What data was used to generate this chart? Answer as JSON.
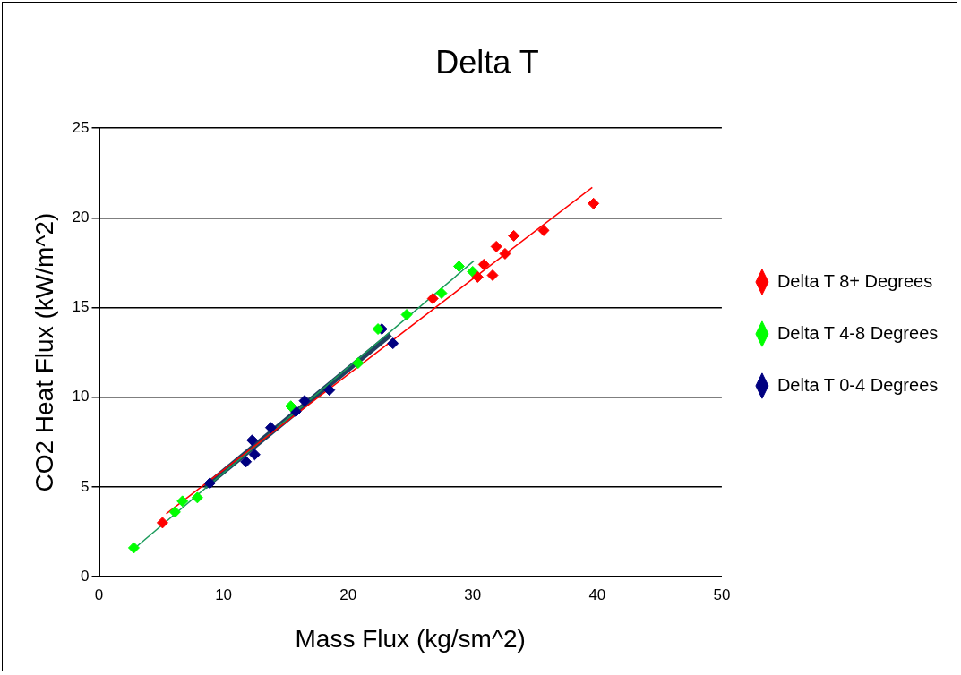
{
  "chart_data": {
    "type": "scatter",
    "title": "Delta T",
    "xlabel": "Mass Flux (kg/sm^2)",
    "ylabel": "CO2 Heat Flux (kW/m^2)",
    "xlim": [
      0,
      50
    ],
    "xticks": [
      0,
      10,
      20,
      30,
      40,
      50
    ],
    "ylim": [
      0,
      25
    ],
    "yticks": [
      0,
      5,
      10,
      15,
      20,
      25
    ],
    "grid": "y",
    "legend": "right",
    "marker": "diamond",
    "series": [
      {
        "name": "Delta T 8+ Degrees",
        "color": "#ff0000",
        "x": [
          5.1,
          26.8,
          30.4,
          30.9,
          31.6,
          31.9,
          32.6,
          33.3,
          35.7,
          39.7
        ],
        "values": [
          3.0,
          15.5,
          16.7,
          17.4,
          16.8,
          18.4,
          18.0,
          19.0,
          19.3,
          20.8
        ]
      },
      {
        "name": "Delta T 4-8 Degrees",
        "color": "#00ff00",
        "x": [
          2.8,
          6.1,
          6.7,
          7.9,
          15.4,
          20.8,
          22.4,
          24.7,
          27.5,
          28.9,
          30.0
        ],
        "values": [
          1.6,
          3.6,
          4.2,
          4.4,
          9.5,
          11.9,
          13.8,
          14.6,
          15.8,
          17.3,
          17.0
        ]
      },
      {
        "name": "Delta T 0-4 Degrees",
        "color": "#000080",
        "x": [
          8.9,
          11.8,
          12.3,
          12.5,
          13.8,
          15.8,
          16.5,
          18.5,
          22.7,
          23.6
        ],
        "values": [
          5.2,
          6.4,
          7.6,
          6.8,
          8.3,
          9.2,
          9.8,
          10.4,
          13.8,
          13.0
        ]
      },
      {
        "type": "line",
        "color": "#ff0000",
        "marker": "none",
        "x": [
          5.4,
          39.6
        ],
        "values": [
          3.5,
          21.7
        ]
      },
      {
        "type": "line",
        "color": "#1a9a5a",
        "marker": "none",
        "x": [
          2.9,
          30.1
        ],
        "values": [
          1.6,
          17.6
        ]
      },
      {
        "type": "line",
        "color": "#1f4060",
        "marker": "none",
        "x": [
          8.5,
          23.4
        ],
        "values": [
          5.0,
          13.5
        ]
      }
    ]
  }
}
